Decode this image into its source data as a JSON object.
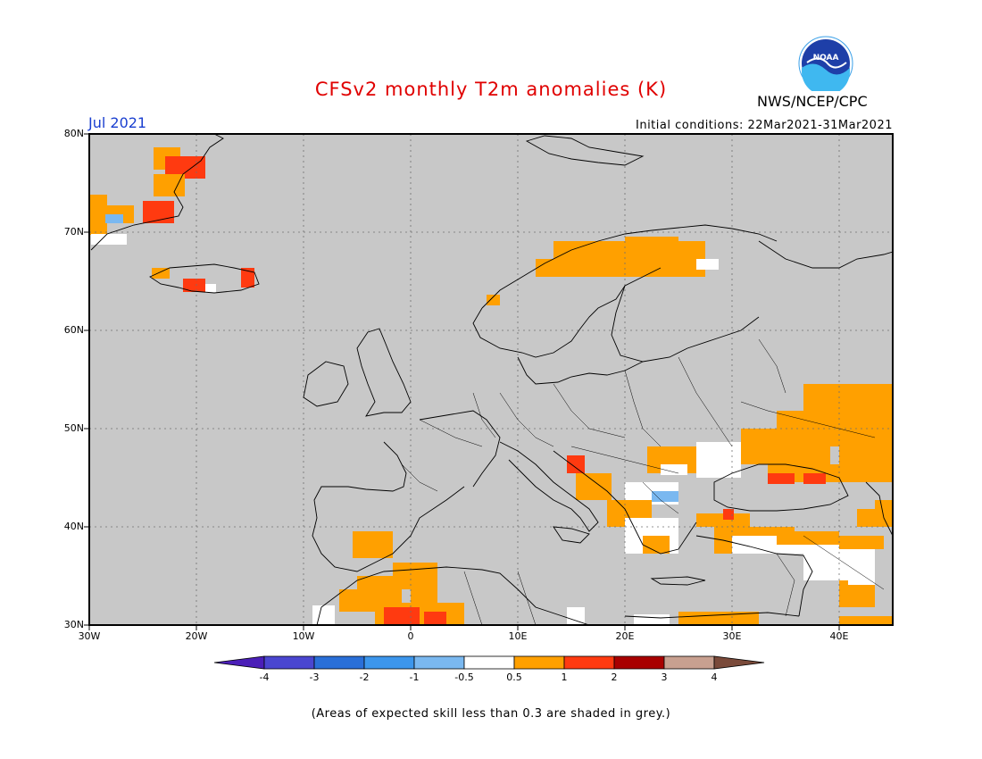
{
  "title": "CFSv2 monthly T2m anomalies (K)",
  "month": "Jul 2021",
  "initial_conditions": "Initial conditions: 22Mar2021-31Mar2021",
  "agency": "NWS/NCEP/CPC",
  "logo_text": "NOAA",
  "footnote": "(Areas of expected skill less than 0.3 are shaded in grey.)",
  "map": {
    "lat_labels": [
      "80N",
      "70N",
      "60N",
      "50N",
      "40N",
      "30N"
    ],
    "lon_labels": [
      "30W",
      "20W",
      "10W",
      "0",
      "10E",
      "20E",
      "30E",
      "40E"
    ],
    "background_color": "#c8c8c8"
  },
  "colorbar": {
    "labels": [
      "-4",
      "-3",
      "-2",
      "-1",
      "-0.5",
      "0.5",
      "1",
      "2",
      "3",
      "4"
    ],
    "colors": [
      "#4b1fb8",
      "#4a46d0",
      "#2a6fd8",
      "#3c96ec",
      "#7ab8f0",
      "#ffffff",
      "#ffa000",
      "#ff3a10",
      "#a80000",
      "#c8a090",
      "#7a4a3a"
    ]
  }
}
